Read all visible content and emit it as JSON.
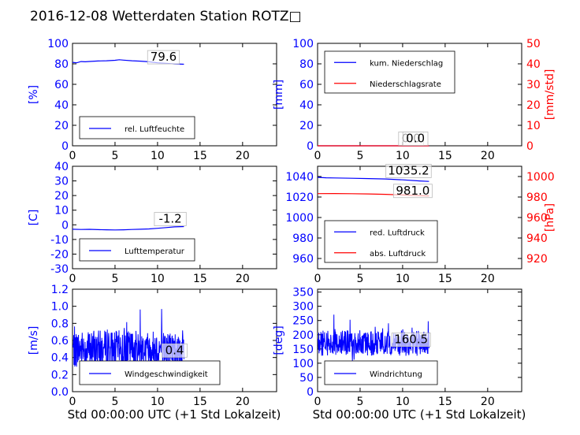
{
  "title": "2016-12-08 Wetterdaten Station ROTZ□",
  "xlabel": "Std 00:00:00 UTC (+1 Std Lokalzeit)",
  "chart_data": [
    {
      "id": "humidity",
      "type": "line",
      "xlim": [
        0,
        24
      ],
      "xticks": [
        0,
        5,
        10,
        15,
        20
      ],
      "ylim": [
        0,
        100
      ],
      "yticks": [
        0,
        20,
        40,
        60,
        80,
        100
      ],
      "ylabel": "[%]",
      "ylabel_color": "#0000ff",
      "series": [
        {
          "name": "rel. Luftfeuchte",
          "color": "#0000ff",
          "axis": "left",
          "x": [
            0,
            0.5,
            1,
            1.5,
            2,
            3,
            4,
            5,
            5.5,
            6,
            7,
            8,
            9,
            10,
            11,
            12,
            13.1
          ],
          "y": [
            81.5,
            81.0,
            82.2,
            82.0,
            82.3,
            82.8,
            83.0,
            83.5,
            84.0,
            83.6,
            83.0,
            82.6,
            82.0,
            81.0,
            80.5,
            79.9,
            79.6
          ]
        }
      ],
      "annotations": [
        {
          "text": "79.6",
          "x": 10.7,
          "y": 83,
          "color": "#000000"
        }
      ]
    },
    {
      "id": "precip",
      "type": "line",
      "xlim": [
        0,
        24
      ],
      "xticks": [
        0,
        5,
        10,
        15,
        20
      ],
      "ylim": [
        0,
        100
      ],
      "yticks": [
        0,
        20,
        40,
        60,
        80,
        100
      ],
      "ylabel": "[mm]",
      "ylabel_color": "#0000ff",
      "ylim2": [
        0,
        50
      ],
      "yticks2": [
        0,
        10,
        20,
        30,
        40,
        50
      ],
      "ylabel2": "[mm/std]",
      "ylabel2_color": "#ff0000",
      "series": [
        {
          "name": "kum. Niederschlag",
          "color": "#0000ff",
          "axis": "left",
          "x": [
            0,
            13.1
          ],
          "y": [
            0,
            0
          ]
        },
        {
          "name": "Niederschlagsrate",
          "color": "#ff0000",
          "axis": "right",
          "x": [
            0,
            13.1
          ],
          "y": [
            0,
            0
          ]
        }
      ],
      "annotations": [
        {
          "text": "0.0",
          "x": 11.0,
          "y": 3.5,
          "color": "#000000"
        },
        {
          "text": "0.0",
          "x": 11.5,
          "y": 3.5,
          "color": "#000000"
        }
      ]
    },
    {
      "id": "temperature",
      "type": "line",
      "xlim": [
        0,
        24
      ],
      "xticks": [
        0,
        5,
        10,
        15,
        20
      ],
      "ylim": [
        -30,
        40
      ],
      "yticks": [
        -30,
        -20,
        -10,
        0,
        10,
        20,
        30,
        40
      ],
      "ylabel": "[C]",
      "ylabel_color": "#0000ff",
      "series": [
        {
          "name": "Lufttemperatur",
          "color": "#0000ff",
          "axis": "left",
          "x": [
            0,
            1,
            2,
            3,
            4,
            5,
            6,
            7,
            8,
            9,
            10,
            11,
            12,
            13.1
          ],
          "y": [
            -3.0,
            -3.2,
            -3.1,
            -3.3,
            -3.4,
            -3.5,
            -3.4,
            -3.2,
            -3.0,
            -2.8,
            -2.4,
            -1.9,
            -1.4,
            -1.2
          ]
        }
      ],
      "annotations": [
        {
          "text": "-1.2",
          "x": 11.5,
          "y": 1.5,
          "color": "#000000"
        }
      ]
    },
    {
      "id": "pressure",
      "type": "line",
      "xlim": [
        0,
        24
      ],
      "xticks": [
        0,
        5,
        10,
        15,
        20
      ],
      "ylim": [
        950,
        1050
      ],
      "yticks": [
        960,
        980,
        1000,
        1020,
        1040
      ],
      "ylabel": "",
      "ylabel_color": "#0000ff",
      "ylim2": [
        910,
        1010
      ],
      "yticks2": [
        920,
        940,
        960,
        980,
        1000
      ],
      "ylabel2": "[hPa]",
      "ylabel2_color": "#ff0000",
      "series": [
        {
          "name": "red. Luftdruck",
          "color": "#0000ff",
          "axis": "left",
          "x": [
            0,
            1,
            2,
            4,
            6,
            8,
            10,
            12,
            13.1
          ],
          "y": [
            1039.2,
            1038.8,
            1038.6,
            1038.3,
            1038.0,
            1037.6,
            1036.8,
            1035.7,
            1035.2
          ]
        },
        {
          "name": "abs. Luftdruck",
          "color": "#ff0000",
          "axis": "right",
          "x": [
            0,
            2,
            4,
            6,
            8,
            10,
            12,
            13.1
          ],
          "y": [
            983.3,
            983.4,
            983.2,
            983.0,
            982.6,
            982.0,
            981.3,
            981.0
          ]
        }
      ],
      "annotations": [
        {
          "text": "1035.2",
          "x": 10.7,
          "y": 1042,
          "color": "#000000"
        },
        {
          "text": "981.0",
          "x": 11.2,
          "y": 1022.5,
          "color": "#000000"
        }
      ]
    },
    {
      "id": "windspeed",
      "type": "line",
      "xlim": [
        0,
        24
      ],
      "xticks": [
        0,
        5,
        10,
        15,
        20
      ],
      "ylim": [
        0,
        1.2
      ],
      "yticks": [
        0.0,
        0.2,
        0.4,
        0.6,
        0.8,
        1.0,
        1.2
      ],
      "ylabel": "[m/s]",
      "ylabel_color": "#0000ff",
      "series": [
        {
          "name": "Windgeschwindigkeit",
          "color": "#0000ff",
          "axis": "left",
          "noisy": true,
          "mean": 0.5,
          "spread": 0.22,
          "min": 0.2,
          "max": 1.2,
          "x_end": 13.1,
          "points": 420,
          "seed": 7
        }
      ],
      "annotations": [
        {
          "text": "0.4",
          "x": 12.0,
          "y": 0.44,
          "color": "#000000"
        }
      ]
    },
    {
      "id": "winddir",
      "type": "line",
      "xlim": [
        0,
        24
      ],
      "xticks": [
        0,
        5,
        10,
        15,
        20
      ],
      "ylim": [
        0,
        360
      ],
      "yticks": [
        0,
        50,
        100,
        150,
        200,
        250,
        300,
        350
      ],
      "ylabel": "[deg]",
      "ylabel_color": "#0000ff",
      "series": [
        {
          "name": "Windrichtung",
          "color": "#0000ff",
          "axis": "left",
          "noisy": true,
          "mean": 170,
          "spread": 45,
          "min": 60,
          "max": 330,
          "x_end": 13.1,
          "points": 420,
          "seed": 13
        }
      ],
      "annotations": [
        {
          "text": "160.5",
          "x": 11.0,
          "y": 170,
          "color": "#000000"
        }
      ]
    }
  ]
}
